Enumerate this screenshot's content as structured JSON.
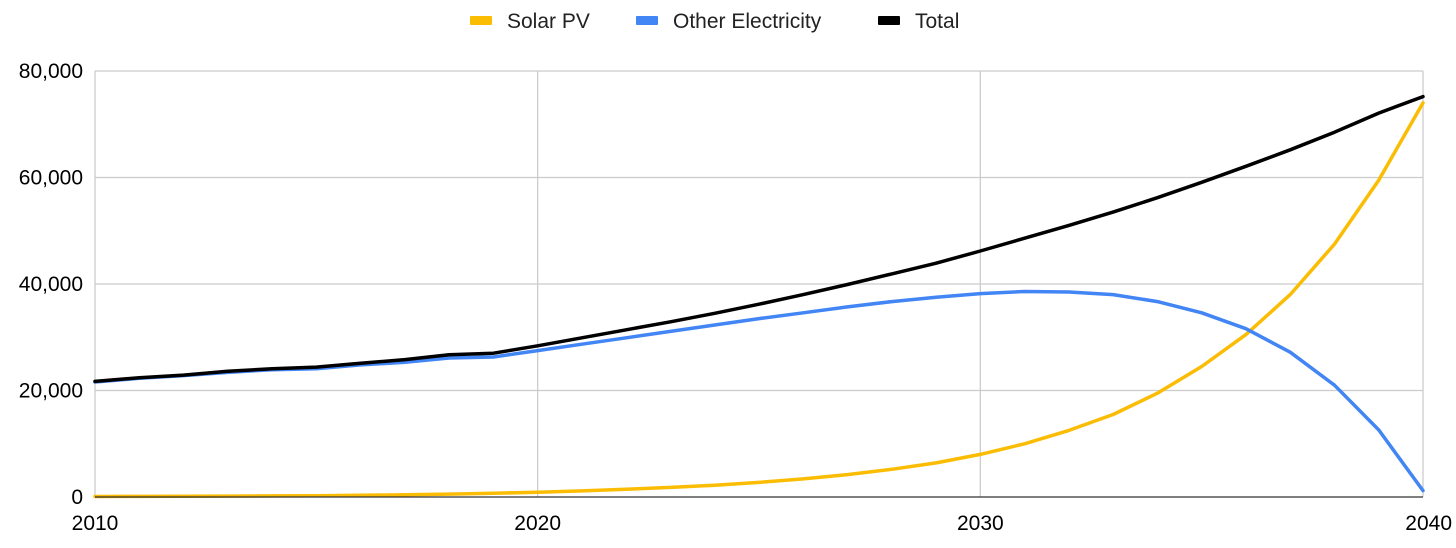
{
  "chart_data": {
    "type": "line",
    "title": "",
    "xlabel": "",
    "ylabel": "",
    "xlim": [
      2010,
      2040
    ],
    "ylim": [
      0,
      80000
    ],
    "x_ticks": [
      2010,
      2020,
      2030,
      2040
    ],
    "x_tick_labels": [
      "2010",
      "2020",
      "2030",
      "2040"
    ],
    "y_ticks": [
      0,
      20000,
      40000,
      60000,
      80000
    ],
    "y_tick_labels": [
      "0",
      "20,000",
      "40,000",
      "60,000",
      "80,000"
    ],
    "grid": true,
    "legend_position": "top-center",
    "x": [
      2010,
      2011,
      2012,
      2013,
      2014,
      2015,
      2016,
      2017,
      2018,
      2019,
      2020,
      2021,
      2022,
      2023,
      2024,
      2025,
      2026,
      2027,
      2028,
      2029,
      2030,
      2031,
      2032,
      2033,
      2034,
      2035,
      2036,
      2037,
      2038,
      2039,
      2040
    ],
    "series": [
      {
        "name": "Solar PV",
        "color": "#fbbc04",
        "values": [
          100,
          120,
          140,
          170,
          200,
          250,
          320,
          410,
          550,
          700,
          900,
          1150,
          1450,
          1800,
          2200,
          2750,
          3400,
          4200,
          5200,
          6400,
          8000,
          10000,
          12500,
          15500,
          19500,
          24500,
          30500,
          38000,
          47500,
          59500,
          74000
        ]
      },
      {
        "name": "Other Electricity",
        "color": "#4285f4",
        "values": [
          21600,
          22300,
          22800,
          23400,
          23900,
          24100,
          24800,
          25300,
          26100,
          26300,
          27500,
          28700,
          29900,
          31100,
          32300,
          33500,
          34600,
          35700,
          36700,
          37500,
          38200,
          38600,
          38500,
          38000,
          36700,
          34600,
          31600,
          27200,
          21000,
          12600,
          1200
        ]
      },
      {
        "name": "Total",
        "color": "#000000",
        "values": [
          21700,
          22400,
          22900,
          23600,
          24100,
          24400,
          25100,
          25800,
          26700,
          27000,
          28400,
          29900,
          31400,
          32900,
          34500,
          36200,
          38000,
          39900,
          41900,
          43900,
          46200,
          48600,
          51000,
          53500,
          56200,
          59100,
          62100,
          65200,
          68500,
          72100,
          75200
        ]
      }
    ]
  }
}
